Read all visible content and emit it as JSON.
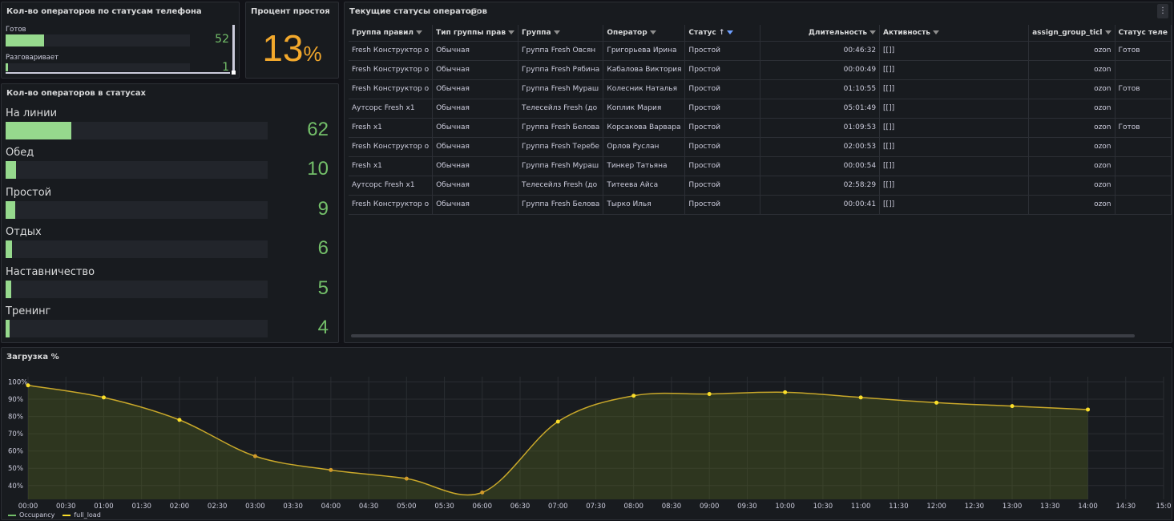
{
  "phone_panel": {
    "title": "Кол-во операторов по статусам телефона",
    "items": [
      {
        "label": "Готов",
        "value": "52",
        "fraction": 0.21
      },
      {
        "label": "Разговаривает",
        "value": "1",
        "fraction": 0.004
      }
    ]
  },
  "idle_panel": {
    "title": "Процент простоя",
    "value": "13",
    "unit": "%"
  },
  "status_panel": {
    "title": "Кол-во операторов в статусах",
    "items": [
      {
        "label": "На линии",
        "value": "62",
        "fraction": 0.25
      },
      {
        "label": "Обед",
        "value": "10",
        "fraction": 0.04
      },
      {
        "label": "Простой",
        "value": "9",
        "fraction": 0.036
      },
      {
        "label": "Отдых",
        "value": "6",
        "fraction": 0.024
      },
      {
        "label": "Наставничество",
        "value": "5",
        "fraction": 0.02
      },
      {
        "label": "Тренинг",
        "value": "4",
        "fraction": 0.016
      }
    ]
  },
  "table_panel": {
    "title": "Текущие статусы операторов",
    "info_icon": "i",
    "menu_icon": "⋮",
    "columns": [
      "Группа правил",
      "Тип группы прав",
      "Группа",
      "Оператор",
      "Статус",
      "Длительность",
      "Активность",
      "assign_group_ticl",
      "Статус теле"
    ],
    "sort_icon": "↑",
    "rows": [
      [
        "Fresh Конструктор о",
        "Обычная",
        "Группа Fresh Овсян",
        "Григорьева Ирина",
        "Простой",
        "00:46:32",
        "[[]]",
        "ozon",
        "Готов"
      ],
      [
        "Fresh Конструктор о",
        "Обычная",
        "Группа Fresh Рябина",
        "Кабалова Виктория",
        "Простой",
        "00:00:49",
        "[[]]",
        "ozon",
        ""
      ],
      [
        "Fresh Конструктор о",
        "Обычная",
        "Группа Fresh Мураш",
        "Колесник Наталья",
        "Простой",
        "01:10:55",
        "[[]]",
        "ozon",
        "Готов"
      ],
      [
        "Аутсорс Fresh x1",
        "Обычная",
        "Телесейлз Fresh (до",
        "Коплик Мария",
        "Простой",
        "05:01:49",
        "[[]]",
        "ozon",
        ""
      ],
      [
        "Fresh x1",
        "Обычная",
        "Группа Fresh Белова",
        "Корсакова Варвара",
        "Простой",
        "01:09:53",
        "[[]]",
        "ozon",
        "Готов"
      ],
      [
        "Fresh Конструктор о",
        "Обычная",
        "Группа Fresh Теребе",
        "Орлов Руслан",
        "Простой",
        "02:00:53",
        "[[]]",
        "ozon",
        ""
      ],
      [
        "Fresh x1",
        "Обычная",
        "Группа Fresh Мураш",
        "Тинкер Татьяна",
        "Простой",
        "00:00:54",
        "[[]]",
        "ozon",
        ""
      ],
      [
        "Аутсорс Fresh x1",
        "Обычная",
        "Телесейлз Fresh (до",
        "Титеева Айса",
        "Простой",
        "02:58:29",
        "[[]]",
        "ozon",
        ""
      ],
      [
        "Fresh Конструктор о",
        "Обычная",
        "Группа Fresh Белова",
        "Тырко Илья",
        "Простой",
        "00:00:41",
        "[[]]",
        "ozon",
        ""
      ]
    ]
  },
  "chart_panel": {
    "title": "Загрузка %"
  },
  "chart_data": {
    "type": "line",
    "title": "Загрузка %",
    "xlabel": "",
    "ylabel": "",
    "x_ticks": [
      "00:00",
      "00:30",
      "01:00",
      "01:30",
      "02:00",
      "02:30",
      "03:00",
      "03:30",
      "04:00",
      "04:30",
      "05:00",
      "05:30",
      "06:00",
      "06:30",
      "07:00",
      "07:30",
      "08:00",
      "08:30",
      "09:00",
      "09:30",
      "10:00",
      "10:30",
      "11:00",
      "11:30",
      "12:00",
      "12:30",
      "13:00",
      "13:30",
      "14:00",
      "14:30",
      "15:0"
    ],
    "y_ticks": [
      "100%",
      "90%",
      "80%",
      "70%",
      "60%",
      "50%",
      "40%"
    ],
    "xlim": [
      0,
      15
    ],
    "ylim": [
      32,
      103
    ],
    "grid": true,
    "legend": "bottom-left",
    "series": [
      {
        "name": "Occupancy",
        "color": "#73bf69",
        "x": [],
        "y": []
      },
      {
        "name": "full_load",
        "color": "#fade2a",
        "x": [
          0,
          1,
          2,
          3,
          4,
          5,
          6,
          7,
          8,
          9,
          10,
          11,
          12,
          13,
          14
        ],
        "y": [
          98,
          91,
          78,
          57,
          49,
          44,
          36,
          77,
          92,
          93,
          94,
          91,
          88,
          86,
          84
        ]
      }
    ]
  }
}
